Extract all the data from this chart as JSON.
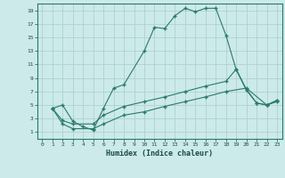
{
  "xlabel": "Humidex (Indice chaleur)",
  "bg_color": "#cceaea",
  "grid_color": "#b0d0d0",
  "line_color": "#2a7a6a",
  "xlim": [
    -0.5,
    23.5
  ],
  "ylim": [
    0,
    20
  ],
  "xticks": [
    0,
    1,
    2,
    3,
    4,
    5,
    6,
    7,
    8,
    9,
    10,
    11,
    12,
    13,
    14,
    15,
    16,
    17,
    18,
    19,
    20,
    21,
    22,
    23
  ],
  "yticks": [
    1,
    3,
    5,
    7,
    9,
    11,
    13,
    15,
    17,
    19
  ],
  "line1_x": [
    1,
    2,
    3,
    4,
    5,
    6,
    7,
    8,
    10,
    11,
    12,
    13,
    14,
    15,
    16,
    17,
    18,
    19,
    20,
    21,
    22,
    23
  ],
  "line1_y": [
    4.5,
    5.0,
    2.6,
    1.8,
    1.3,
    4.5,
    7.5,
    8.0,
    13.0,
    16.5,
    16.3,
    18.2,
    19.3,
    18.8,
    19.3,
    19.3,
    15.3,
    10.2,
    7.2,
    5.3,
    5.0,
    5.7
  ],
  "line2_x": [
    1,
    2,
    3,
    5,
    6,
    8,
    10,
    12,
    14,
    16,
    18,
    19,
    20,
    21,
    22,
    23
  ],
  "line2_y": [
    4.5,
    2.7,
    2.2,
    2.2,
    3.5,
    4.8,
    5.5,
    6.2,
    7.0,
    7.8,
    8.5,
    10.3,
    7.3,
    5.3,
    5.0,
    5.7
  ],
  "line3_x": [
    1,
    2,
    3,
    5,
    6,
    8,
    10,
    12,
    14,
    16,
    18,
    20,
    22,
    23
  ],
  "line3_y": [
    4.5,
    2.2,
    1.5,
    1.5,
    2.2,
    3.5,
    4.0,
    4.8,
    5.5,
    6.2,
    7.0,
    7.5,
    5.0,
    5.5
  ]
}
